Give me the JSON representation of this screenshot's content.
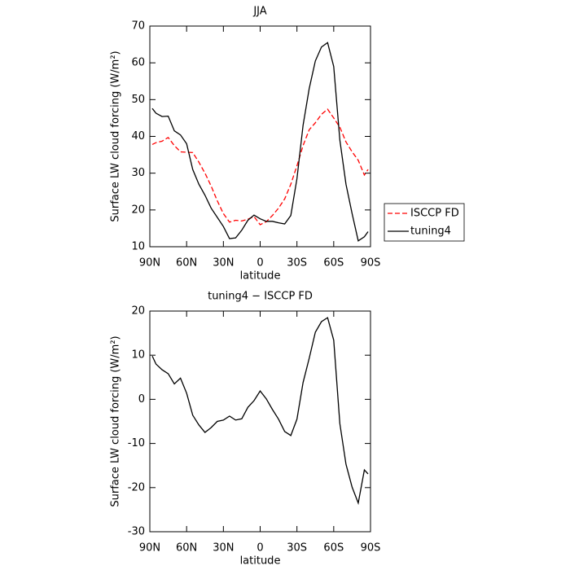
{
  "chart_data": [
    {
      "type": "line",
      "title": "JJA",
      "xlabel": "latitude",
      "ylabel": "Surface LW cloud forcing (W/m²)",
      "x": [
        88,
        85,
        80,
        75,
        70,
        65,
        60,
        55,
        50,
        45,
        40,
        35,
        30,
        25,
        20,
        15,
        10,
        5,
        0,
        -5,
        -10,
        -15,
        -20,
        -25,
        -30,
        -35,
        -40,
        -45,
        -50,
        -55,
        -60,
        -65,
        -70,
        -75,
        -80,
        -85,
        -88
      ],
      "xlim": [
        90,
        -90
      ],
      "xticks": [
        {
          "value": 90,
          "label": "90N"
        },
        {
          "value": 60,
          "label": "60N"
        },
        {
          "value": 30,
          "label": "30N"
        },
        0,
        {
          "value": -30,
          "label": "30S"
        },
        {
          "value": -60,
          "label": "60S"
        },
        {
          "value": -90,
          "label": "90S"
        }
      ],
      "ylim": [
        10,
        70
      ],
      "yticks": [
        10,
        20,
        30,
        40,
        50,
        60,
        70
      ],
      "legend": "right",
      "series": [
        {
          "name": "ISCCP FD",
          "color": "#ff0000",
          "linestyle": "dashed",
          "values": [
            37.8,
            38.3,
            38.7,
            39.7,
            37.5,
            35.8,
            35.7,
            35.6,
            33,
            30,
            26.5,
            22.5,
            19,
            16.7,
            17.2,
            17,
            17.5,
            18.2,
            16,
            16.8,
            18.5,
            20.5,
            23,
            27,
            32,
            37.5,
            41.8,
            43.7,
            46,
            47.4,
            45,
            42.5,
            38.5,
            35.8,
            33.5,
            29.5,
            31
          ]
        },
        {
          "name": "tuning4",
          "color": "#000000",
          "linestyle": "solid",
          "values": [
            47.6,
            46.3,
            45.4,
            45.5,
            41.5,
            40.4,
            38,
            31,
            27,
            24,
            20.5,
            18,
            15.5,
            12.2,
            12.4,
            14.5,
            17.2,
            18.6,
            17.6,
            16.9,
            16.9,
            16.5,
            16.2,
            18.5,
            28.5,
            43,
            53,
            60.5,
            64.3,
            65.5,
            59,
            39,
            27,
            19,
            11.6,
            12.7,
            14.1
          ]
        }
      ]
    },
    {
      "type": "line",
      "title": "tuning4 − ISCCP FD",
      "xlabel": "latitude",
      "ylabel": "Surface LW cloud forcing (W/m²)",
      "x": [
        88,
        85,
        80,
        75,
        70,
        65,
        60,
        55,
        50,
        45,
        40,
        35,
        30,
        25,
        20,
        15,
        10,
        5,
        0,
        -5,
        -10,
        -15,
        -20,
        -25,
        -30,
        -35,
        -40,
        -45,
        -50,
        -55,
        -60,
        -65,
        -70,
        -75,
        -80,
        -85,
        -88
      ],
      "xlim": [
        90,
        -90
      ],
      "xticks": [
        {
          "value": 90,
          "label": "90N"
        },
        {
          "value": 60,
          "label": "60N"
        },
        {
          "value": 30,
          "label": "30N"
        },
        0,
        {
          "value": -30,
          "label": "30S"
        },
        {
          "value": -60,
          "label": "60S"
        },
        {
          "value": -90,
          "label": "90S"
        }
      ],
      "ylim": [
        -30,
        20
      ],
      "yticks": [
        -30,
        -20,
        -10,
        0,
        10,
        20
      ],
      "series": [
        {
          "color": "#000000",
          "linestyle": "solid",
          "values": [
            9.8,
            8,
            6.7,
            5.8,
            3.5,
            4.8,
            1.4,
            -3.6,
            -5.8,
            -7.5,
            -6.4,
            -5,
            -4.7,
            -3.8,
            -4.7,
            -4.4,
            -1.8,
            -0.3,
            1.9,
            0.1,
            -2.3,
            -4.5,
            -7.3,
            -8.2,
            -4.5,
            3.8,
            9.3,
            15.2,
            17.6,
            18.5,
            13.4,
            -5.5,
            -14.7,
            -19.9,
            -23.5,
            -16,
            -16.9
          ]
        }
      ]
    }
  ]
}
